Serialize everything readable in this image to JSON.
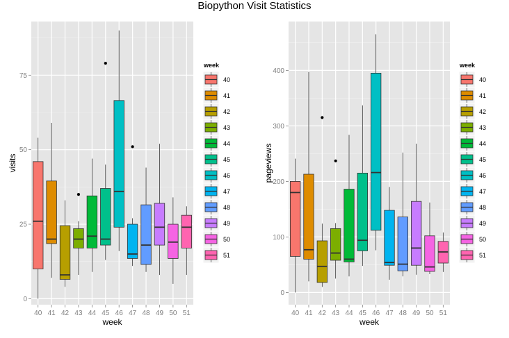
{
  "title": "Biopython Visit Statistics",
  "chart_data": [
    {
      "type": "box",
      "xlabel": "week",
      "ylabel": "visits",
      "ylim": [
        -2,
        93
      ],
      "yticks": [
        0,
        25,
        50,
        75
      ],
      "legend_title": "week",
      "legend_position": "right",
      "grid": true,
      "categories": [
        "40",
        "41",
        "42",
        "43",
        "44",
        "45",
        "46",
        "47",
        "48",
        "49",
        "50",
        "51"
      ],
      "colors": [
        "#f8766d",
        "#de8c00",
        "#b79f00",
        "#7cae00",
        "#00ba38",
        "#00c08b",
        "#00bfc4",
        "#00b4f0",
        "#619cff",
        "#c77cff",
        "#f564e3",
        "#ff64b0"
      ],
      "boxes": [
        {
          "week": "40",
          "min": 0,
          "q1": 10,
          "median": 26,
          "q3": 46,
          "max": 54,
          "outliers": []
        },
        {
          "week": "41",
          "min": 7,
          "q1": 18.5,
          "median": 20,
          "q3": 39.5,
          "max": 59,
          "outliers": []
        },
        {
          "week": "42",
          "min": 4,
          "q1": 6.5,
          "median": 8,
          "q3": 24.5,
          "max": 33,
          "outliers": []
        },
        {
          "week": "43",
          "min": 8,
          "q1": 17,
          "median": 20,
          "q3": 23.5,
          "max": 26,
          "outliers": [
            35
          ]
        },
        {
          "week": "44",
          "min": 9,
          "q1": 17,
          "median": 21,
          "q3": 34.5,
          "max": 47,
          "outliers": []
        },
        {
          "week": "45",
          "min": 13,
          "q1": 18,
          "median": 20,
          "q3": 37,
          "max": 45,
          "outliers": [
            79
          ]
        },
        {
          "week": "46",
          "min": 16,
          "q1": 24,
          "median": 36,
          "q3": 66.5,
          "max": 90,
          "outliers": []
        },
        {
          "week": "47",
          "min": 11,
          "q1": 13.5,
          "median": 15,
          "q3": 25,
          "max": 27,
          "outliers": [
            51
          ]
        },
        {
          "week": "48",
          "min": 9,
          "q1": 11.5,
          "median": 18,
          "q3": 31.5,
          "max": 44,
          "outliers": []
        },
        {
          "week": "49",
          "min": 8,
          "q1": 18,
          "median": 24,
          "q3": 32,
          "max": 52,
          "outliers": []
        },
        {
          "week": "50",
          "min": 5,
          "q1": 13.5,
          "median": 19,
          "q3": 25,
          "max": 34,
          "outliers": []
        },
        {
          "week": "51",
          "min": 8,
          "q1": 17,
          "median": 24,
          "q3": 28,
          "max": 31,
          "outliers": []
        }
      ]
    },
    {
      "type": "box",
      "xlabel": "week",
      "ylabel": "pageviews",
      "ylim": [
        -22,
        488
      ],
      "yticks": [
        0,
        100,
        200,
        300,
        400
      ],
      "legend_title": "week",
      "legend_position": "right",
      "grid": true,
      "categories": [
        "40",
        "41",
        "42",
        "43",
        "44",
        "45",
        "46",
        "47",
        "48",
        "49",
        "50",
        "51"
      ],
      "colors": [
        "#f8766d",
        "#de8c00",
        "#b79f00",
        "#7cae00",
        "#00ba38",
        "#00c08b",
        "#00bfc4",
        "#00b4f0",
        "#619cff",
        "#c77cff",
        "#f564e3",
        "#ff64b0"
      ],
      "boxes": [
        {
          "week": "40",
          "min": 0,
          "q1": 65,
          "median": 180,
          "q3": 200,
          "max": 241,
          "outliers": []
        },
        {
          "week": "41",
          "min": 20,
          "q1": 60,
          "median": 77,
          "q3": 213,
          "max": 397,
          "outliers": []
        },
        {
          "week": "42",
          "min": 10,
          "q1": 18,
          "median": 47,
          "q3": 93,
          "max": 124,
          "outliers": [
            315
          ]
        },
        {
          "week": "43",
          "min": 25,
          "q1": 58,
          "median": 71,
          "q3": 115,
          "max": 125,
          "outliers": [
            237
          ]
        },
        {
          "week": "44",
          "min": 29,
          "q1": 55,
          "median": 60,
          "q3": 186,
          "max": 284,
          "outliers": []
        },
        {
          "week": "45",
          "min": 48,
          "q1": 75,
          "median": 94,
          "q3": 215,
          "max": 337,
          "outliers": []
        },
        {
          "week": "46",
          "min": 76,
          "q1": 112,
          "median": 216,
          "q3": 395,
          "max": 465,
          "outliers": []
        },
        {
          "week": "47",
          "min": 23,
          "q1": 49,
          "median": 54,
          "q3": 148,
          "max": 190,
          "outliers": []
        },
        {
          "week": "48",
          "min": 29,
          "q1": 39,
          "median": 51,
          "q3": 136,
          "max": 252,
          "outliers": []
        },
        {
          "week": "49",
          "min": 32,
          "q1": 49,
          "median": 80,
          "q3": 164,
          "max": 268,
          "outliers": []
        },
        {
          "week": "50",
          "min": 33,
          "q1": 38,
          "median": 46,
          "q3": 102,
          "max": 162,
          "outliers": []
        },
        {
          "week": "51",
          "min": 37,
          "q1": 53,
          "median": 73,
          "q3": 92,
          "max": 108,
          "outliers": []
        }
      ]
    }
  ]
}
